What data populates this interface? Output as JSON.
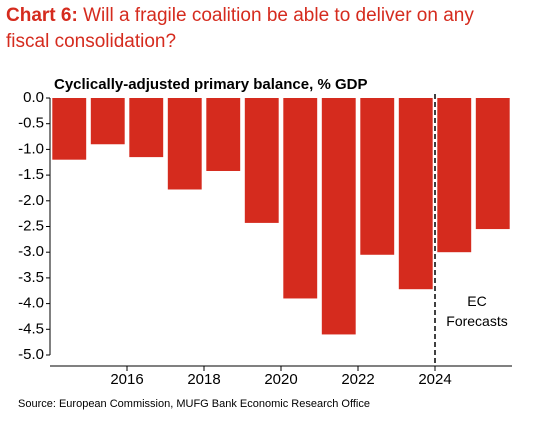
{
  "chart_data": {
    "type": "bar",
    "title_prefix": "Chart 6:",
    "title": "Will a fragile coalition be able to deliver on any fiscal consolidation?",
    "subtitle": "Cyclically-adjusted primary balance, % GDP",
    "source": "Source: European Commission, MUFG Bank Economic Research Office",
    "annotation": "EC Forecasts",
    "divider_x": 2024,
    "x": [
      2014.5,
      2015.5,
      2016.5,
      2017.5,
      2018.5,
      2019.5,
      2020.5,
      2021.5,
      2022.5,
      2023.5,
      2024.5,
      2025.5
    ],
    "values": [
      -1.2,
      -0.9,
      -1.15,
      -1.78,
      -1.42,
      -2.43,
      -3.9,
      -4.6,
      -3.05,
      -3.72,
      -3.0,
      -2.55
    ],
    "color": "#d52b1e",
    "xlim": [
      2014,
      2026
    ],
    "xticks": [
      2016,
      2018,
      2020,
      2022,
      2024
    ],
    "ylim": [
      -5.0,
      0
    ],
    "yticks": [
      {
        "value": 0,
        "label": "0.0"
      },
      -0.5,
      {
        "value": -1,
        "label": "-1.0"
      },
      -1.5,
      {
        "value": -2,
        "label": "-2.0"
      },
      -2.5,
      {
        "value": -3,
        "label": "-3.0"
      },
      -3.5,
      {
        "value": -4,
        "label": "-4.0"
      },
      -4.5,
      {
        "value": -5,
        "label": "-5.0"
      }
    ],
    "grid": false
  }
}
